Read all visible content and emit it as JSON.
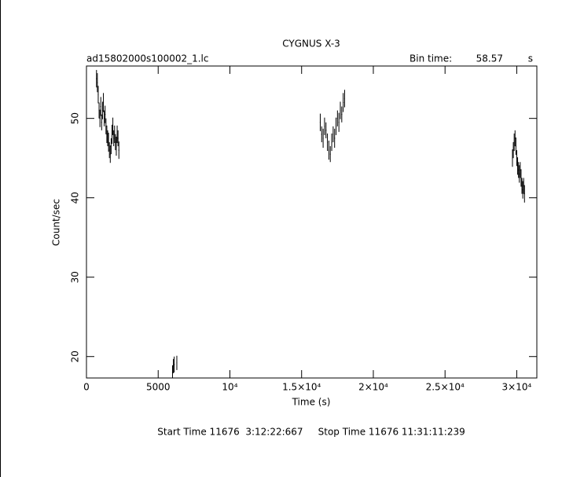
{
  "chart_data": {
    "type": "errorbar",
    "title": "CYGNUS X-3",
    "file": "ad15802000s100002_1.lc",
    "bin_time_label": "Bin time:",
    "bin_time": 58.57,
    "bin_time_unit": "s",
    "x_label": "Time (s)",
    "y_label": "Count/sec",
    "footer": "Start Time 11676  3:12:22:667     Stop Time 11676 11:31:11:239",
    "xlim": [
      0,
      31400
    ],
    "ylim": [
      17.3,
      56.6
    ],
    "xticks": [
      0,
      5000,
      {
        "value": 10000,
        "label": "10⁴"
      },
      {
        "value": 15000,
        "label": "1.5×10⁴"
      },
      {
        "value": 20000,
        "label": "2×10⁴"
      },
      {
        "value": 25000,
        "label": "2.5×10⁴"
      },
      {
        "value": 30000,
        "label": "3×10⁴"
      }
    ],
    "yticks": [
      20,
      30,
      40,
      50
    ],
    "x": [
      700,
      760,
      820,
      880,
      940,
      1000,
      1060,
      1120,
      1180,
      1240,
      1300,
      1360,
      1420,
      1480,
      1540,
      1600,
      1660,
      1720,
      1780,
      1840,
      1900,
      1960,
      2020,
      2080,
      2140,
      2200,
      2260,
      6000,
      6060,
      6120,
      6300,
      16300,
      16400,
      16500,
      16600,
      16700,
      16800,
      16900,
      17000,
      17100,
      17200,
      17300,
      17400,
      17500,
      17600,
      17700,
      17800,
      17900,
      18000,
      29700,
      29760,
      29820,
      29880,
      29940,
      30000,
      30060,
      30120,
      30180,
      30240,
      30300,
      30360,
      30420,
      30480,
      30540
    ],
    "values": [
      55,
      54.5,
      53,
      51,
      50,
      51.5,
      49.5,
      51,
      52,
      50,
      50.5,
      49,
      48,
      47.5,
      47,
      46,
      45.5,
      46.5,
      48,
      49,
      47.5,
      48,
      47,
      46.5,
      48,
      47.5,
      46,
      18,
      18.8,
      19,
      19.2,
      49.5,
      48,
      47.5,
      49,
      48.5,
      47,
      46,
      45.5,
      47,
      48,
      47.5,
      49,
      50,
      49.5,
      51,
      50.5,
      52,
      52.5,
      45,
      46,
      47,
      47.5,
      46.5,
      45,
      44,
      43.5,
      43,
      43.5,
      42.5,
      41.5,
      41,
      41.5,
      40.5
    ],
    "errors": [
      1.1,
      1.2,
      1.1,
      1.0,
      1.1,
      1.2,
      1.0,
      1.1,
      1.2,
      1.0,
      1.1,
      1.0,
      1.1,
      1.0,
      1.2,
      1.0,
      1.1,
      1.0,
      1.2,
      1.1,
      1.0,
      1.1,
      1.0,
      1.2,
      1.1,
      1.0,
      1.1,
      0.9,
      0.9,
      1.0,
      0.9,
      1.1,
      1.0,
      1.2,
      1.1,
      1.0,
      1.1,
      1.2,
      1.0,
      1.1,
      1.0,
      1.2,
      1.1,
      1.0,
      1.2,
      1.1,
      1.0,
      1.2,
      1.1,
      1.1,
      1.0,
      1.1,
      1.0,
      1.1,
      1.0,
      1.1,
      1.0,
      1.1,
      1.0,
      1.1,
      1.0,
      1.1,
      1.0,
      1.1
    ]
  }
}
